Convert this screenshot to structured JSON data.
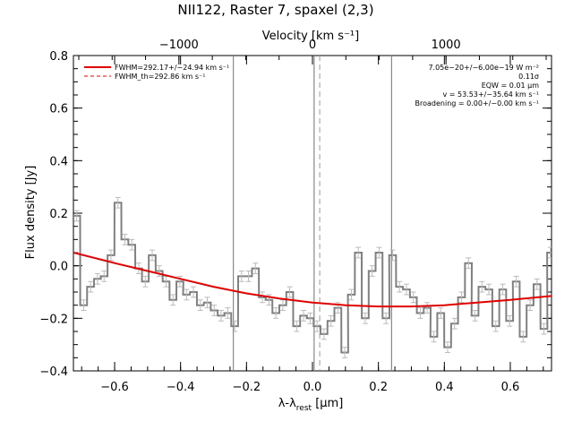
{
  "chart_data": {
    "type": "line",
    "title": "NII122, Raster 7, spaxel (2,3)",
    "xlabel_html": "λ-λ<sub>rest</sub> [μm]",
    "xlabel": "λ-λrest [μm]",
    "ylabel": "Flux density [Jy]",
    "top_axis_label": "Velocity [km s⁻¹]",
    "xlim": [
      -0.725,
      0.725
    ],
    "ylim": [
      -0.4,
      0.8
    ],
    "x_ticks": [
      -0.6,
      -0.4,
      -0.2,
      0.0,
      0.2,
      0.4,
      0.6
    ],
    "x_tick_labels": [
      "−0.6",
      "−0.4",
      "−0.2",
      "0.0",
      "0.2",
      "0.4",
      "0.6"
    ],
    "y_ticks": [
      -0.4,
      -0.2,
      0.0,
      0.2,
      0.4,
      0.6,
      0.8
    ],
    "y_tick_labels": [
      "−0.4",
      "−0.2",
      "0.0",
      "0.2",
      "0.4",
      "0.6",
      "0.8"
    ],
    "top_ticks_um": [
      -0.405,
      0.0,
      0.405
    ],
    "top_tick_labels": [
      "−1000",
      "0",
      "1000"
    ],
    "vertical_lines_solid": [
      -0.24,
      0.005,
      0.24
    ],
    "vertical_line_dashed": 0.022,
    "legend": [
      {
        "label": "FWHM=292.17+/−24.94 km s⁻¹",
        "style": "solid",
        "color": "#e00000"
      },
      {
        "label": "FWHM_th=292.86 km s⁻¹",
        "style": "dashed",
        "color": "#e00000"
      }
    ],
    "annotations": [
      "7.05e−20+/−6.00e−19 W m⁻²",
      "0.11σ",
      "EQW = 0.01 μm",
      "v = 53.53+/−35.64 km s⁻¹",
      "Broadening = 0.00+/−0.00 km s⁻¹"
    ],
    "series": [
      {
        "kind": "step",
        "color": "#808080",
        "bin_width": 0.0208,
        "x": [
          -0.715,
          -0.694,
          -0.673,
          -0.652,
          -0.632,
          -0.611,
          -0.59,
          -0.569,
          -0.548,
          -0.527,
          -0.507,
          -0.486,
          -0.465,
          -0.444,
          -0.423,
          -0.402,
          -0.382,
          -0.361,
          -0.34,
          -0.319,
          -0.298,
          -0.277,
          -0.257,
          -0.236,
          -0.215,
          -0.194,
          -0.173,
          -0.152,
          -0.132,
          -0.111,
          -0.09,
          -0.069,
          -0.048,
          -0.027,
          -0.007,
          0.014,
          0.035,
          0.056,
          0.077,
          0.098,
          0.118,
          0.139,
          0.16,
          0.181,
          0.202,
          0.223,
          0.243,
          0.264,
          0.285,
          0.306,
          0.327,
          0.348,
          0.368,
          0.389,
          0.41,
          0.431,
          0.452,
          0.473,
          0.493,
          0.514,
          0.535,
          0.556,
          0.577,
          0.598,
          0.618,
          0.639,
          0.66,
          0.681,
          0.702,
          0.722
        ],
        "y": [
          0.19,
          -0.15,
          -0.08,
          -0.05,
          -0.04,
          0.04,
          0.24,
          0.1,
          0.08,
          -0.01,
          -0.06,
          0.04,
          -0.02,
          -0.06,
          -0.13,
          -0.06,
          -0.11,
          -0.1,
          -0.15,
          -0.14,
          -0.17,
          -0.19,
          -0.18,
          -0.23,
          -0.04,
          -0.04,
          -0.01,
          -0.12,
          -0.13,
          -0.18,
          -0.15,
          -0.1,
          -0.23,
          -0.19,
          -0.2,
          -0.23,
          -0.26,
          -0.21,
          -0.16,
          -0.33,
          -0.11,
          0.05,
          -0.2,
          -0.02,
          0.05,
          -0.2,
          0.04,
          -0.08,
          -0.09,
          -0.12,
          -0.18,
          -0.16,
          -0.27,
          -0.18,
          -0.31,
          -0.22,
          -0.12,
          0.01,
          -0.19,
          -0.08,
          -0.09,
          -0.23,
          -0.09,
          -0.21,
          -0.06,
          -0.27,
          -0.15,
          -0.07,
          -0.24,
          0.05
        ],
        "err": [
          0.02,
          0.02,
          0.02,
          0.02,
          0.02,
          0.02,
          0.02,
          0.02,
          0.02,
          0.02,
          0.02,
          0.02,
          0.02,
          0.02,
          0.02,
          0.02,
          0.02,
          0.02,
          0.02,
          0.02,
          0.02,
          0.02,
          0.02,
          0.02,
          0.02,
          0.02,
          0.02,
          0.02,
          0.02,
          0.02,
          0.02,
          0.02,
          0.02,
          0.02,
          0.02,
          0.02,
          0.02,
          0.02,
          0.02,
          0.02,
          0.02,
          0.02,
          0.02,
          0.02,
          0.02,
          0.02,
          0.02,
          0.02,
          0.02,
          0.02,
          0.02,
          0.02,
          0.02,
          0.02,
          0.02,
          0.02,
          0.02,
          0.02,
          0.02,
          0.02,
          0.02,
          0.02,
          0.02,
          0.02,
          0.02,
          0.02,
          0.02,
          0.02,
          0.02,
          0.02
        ]
      },
      {
        "kind": "fit",
        "color": "#e00000",
        "x": [
          -0.725,
          -0.6,
          -0.5,
          -0.4,
          -0.3,
          -0.2,
          -0.1,
          0.0,
          0.1,
          0.2,
          0.3,
          0.4,
          0.5,
          0.6,
          0.725
        ],
        "y": [
          0.05,
          0.01,
          -0.02,
          -0.05,
          -0.08,
          -0.105,
          -0.125,
          -0.14,
          -0.15,
          -0.155,
          -0.155,
          -0.15,
          -0.14,
          -0.13,
          -0.115
        ]
      }
    ]
  }
}
